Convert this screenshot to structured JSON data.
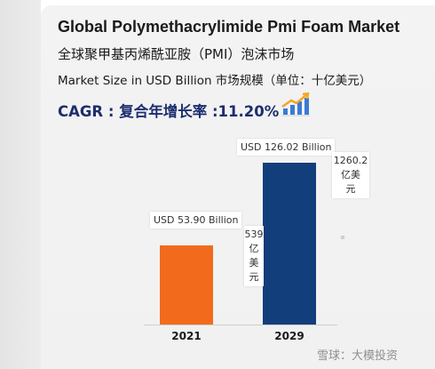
{
  "header": {
    "title": "Global Polymethacrylimide Pmi Foam Market",
    "subtitle_cn": "全球聚甲基丙烯酰亚胺（PMI）泡沫市场",
    "unit_label": "Market Size in USD Billion 市场规模（单位：十亿美元）",
    "cagr": "CAGR : 复合年增长率 :11.20%"
  },
  "chart_data": {
    "type": "bar",
    "categories": [
      "2021",
      "2029"
    ],
    "values": [
      53.9,
      126.02
    ],
    "bar_colors": [
      "#f26b1d",
      "#133e7c"
    ],
    "value_labels": [
      "USD 53.90 Billion",
      "USD 126.02 Billion"
    ],
    "value_labels_cn": [
      [
        "539",
        "亿",
        "美",
        "元"
      ],
      [
        "1260.2",
        "亿美",
        "元"
      ]
    ],
    "title": "Global Polymethacrylimide Pmi Foam Market",
    "xlabel": "",
    "ylabel": "",
    "grid": false
  },
  "watermark": "雪球：大模投资"
}
